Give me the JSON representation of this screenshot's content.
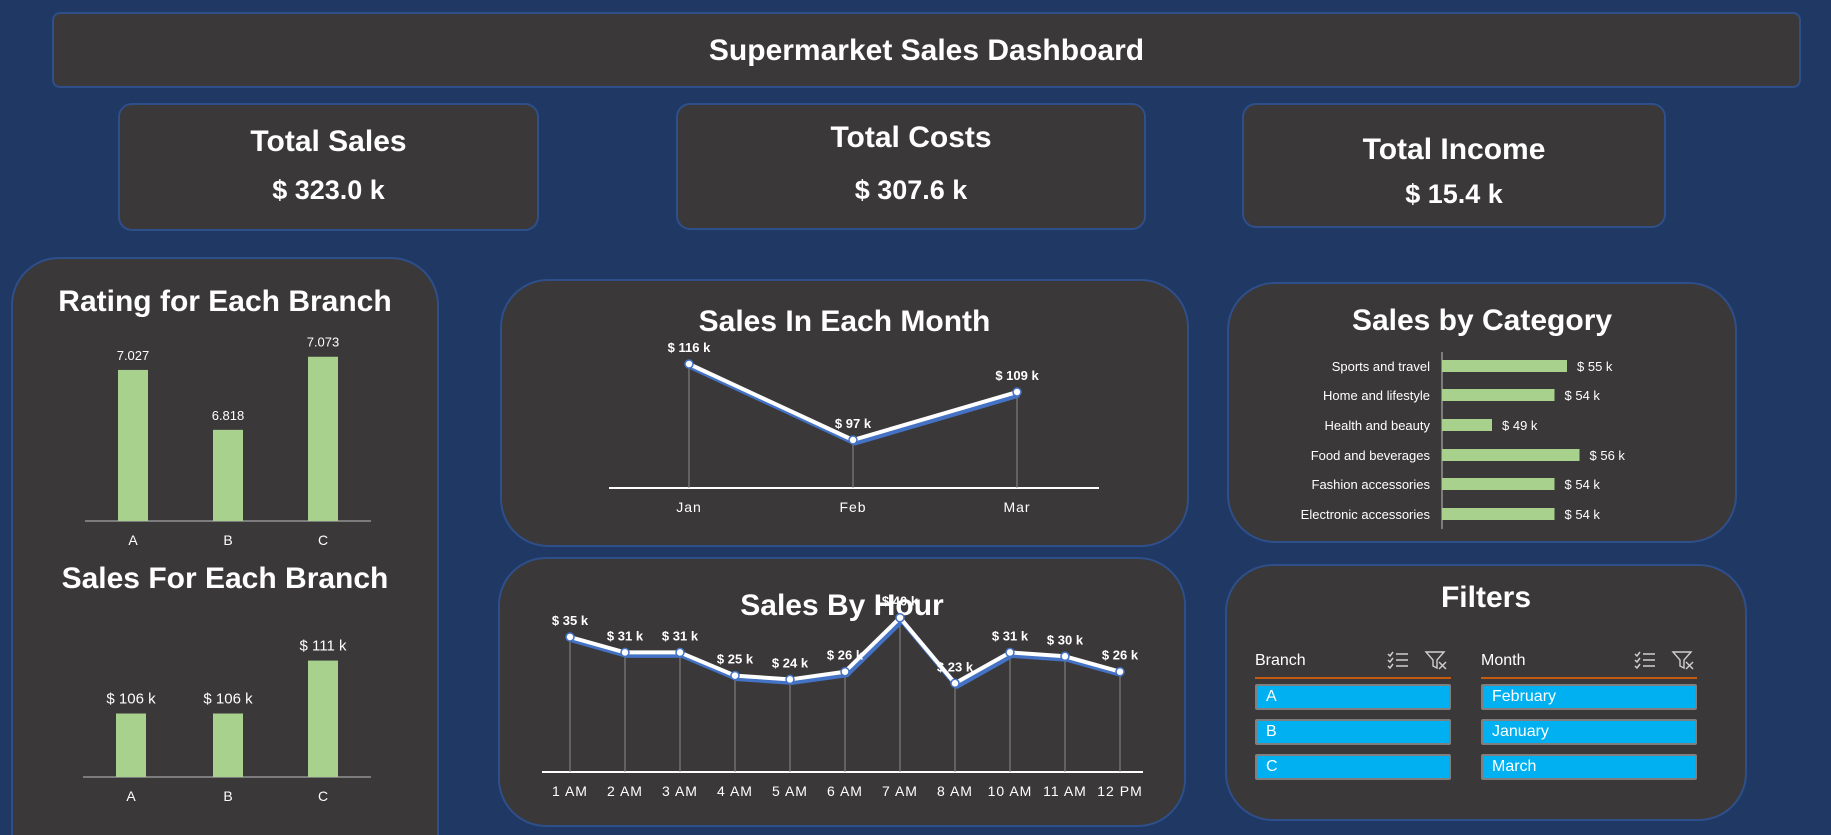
{
  "header": {
    "title": "Supermarket Sales Dashboard"
  },
  "kpis": {
    "total_sales": {
      "label": "Total Sales",
      "value": "$ 323.0 k"
    },
    "total_costs": {
      "label": "Total Costs",
      "value": "$ 307.6 k"
    },
    "total_income": {
      "label": "Total Income",
      "value": "$ 15.4 k"
    }
  },
  "chart_data": [
    {
      "id": "rating",
      "type": "bar",
      "title": "Rating for Each Branch",
      "categories": [
        "A",
        "B",
        "C"
      ],
      "values": [
        7.027,
        6.818,
        7.073
      ],
      "labels": [
        "7.027",
        "6.818",
        "7.073"
      ],
      "ylim": [
        6.5,
        7.1
      ],
      "grid": false,
      "color": "#a9d18e"
    },
    {
      "id": "branch_sales",
      "type": "bar",
      "title": "Sales For Each Branch",
      "categories": [
        "A",
        "B",
        "C"
      ],
      "values": [
        106,
        106,
        111
      ],
      "labels": [
        "$ 106 k",
        "$ 106 k",
        "$ 111 k"
      ],
      "ylim": [
        100,
        112
      ],
      "grid": false,
      "color": "#a9d18e"
    },
    {
      "id": "monthly",
      "type": "line",
      "title": "Sales In Each Month",
      "categories": [
        "Jan",
        "Feb",
        "Mar"
      ],
      "values": [
        116,
        97,
        109
      ],
      "labels": [
        "$ 116 k",
        "$ 97 k",
        "$ 109 k"
      ],
      "ylim": [
        85,
        118
      ],
      "grid": false,
      "color": "#ffffff",
      "shadow_color": "#4472c4"
    },
    {
      "id": "category",
      "type": "bar",
      "orientation": "horizontal",
      "title": "Sales by Category",
      "categories": [
        "Sports and travel",
        "Home and lifestyle",
        "Health and beauty",
        "Food and beverages",
        "Fashion accessories",
        "Electronic accessories"
      ],
      "values": [
        55,
        54,
        49,
        56,
        54,
        54
      ],
      "labels": [
        "$ 55 k",
        "$ 54 k",
        "$ 49 k",
        "$ 56 k",
        "$ 54 k",
        "$ 54 k"
      ],
      "xlim": [
        45,
        57
      ],
      "grid": false,
      "color": "#a9d18e"
    },
    {
      "id": "hourly",
      "type": "line",
      "title": "Sales By Hour",
      "categories": [
        "1 AM",
        "2 AM",
        "3 AM",
        "4 AM",
        "5 AM",
        "6 AM",
        "7 AM",
        "8 AM",
        "10 AM",
        "11 AM",
        "12 PM"
      ],
      "values": [
        35,
        31,
        31,
        25,
        24,
        26,
        40,
        23,
        31,
        30,
        26
      ],
      "labels": [
        "$ 35 k",
        "$ 31 k",
        "$ 31 k",
        "$ 25 k",
        "$ 24 k",
        "$ 26 k",
        "$ 40 k",
        "$ 23 k",
        "$ 31 k",
        "$ 30 k",
        "$ 26 k"
      ],
      "ylim": [
        0,
        42
      ],
      "grid": false,
      "color": "#ffffff",
      "shadow_color": "#4472c4"
    }
  ],
  "filters": {
    "title": "Filters",
    "branch": {
      "label": "Branch",
      "options": [
        "A",
        "B",
        "C"
      ]
    },
    "month": {
      "label": "Month",
      "options": [
        "February",
        "January",
        "March"
      ]
    },
    "icons": [
      "multi-select-icon",
      "clear-filter-icon"
    ],
    "accent_color": "#c55a11",
    "selected_color": "#00b0f0"
  }
}
